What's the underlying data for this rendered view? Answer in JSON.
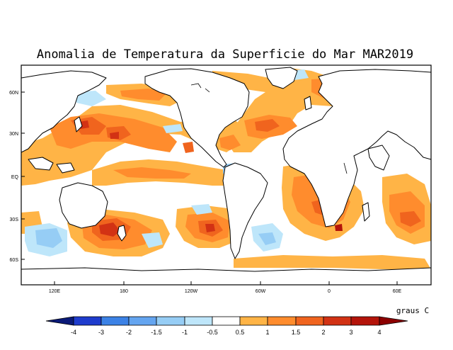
{
  "map": {
    "title": "Anomalia de Temperatura da Superficie do Mar MAR2019",
    "lat_labels": [
      "60N",
      "30N",
      "EQ",
      "30S",
      "60S"
    ],
    "lon_labels": [
      "120E",
      "180",
      "120W",
      "60W",
      "0",
      "60E"
    ],
    "unit_label": "graus C"
  },
  "legend": {
    "ticks": [
      "-4",
      "-3",
      "-2",
      "-1.5",
      "-1",
      "-0.5",
      "0.5",
      "1",
      "1.5",
      "2",
      "3",
      "4"
    ],
    "colors": {
      "lt_m4": "#0a1a78",
      "m4_m3": "#1e3ccd",
      "m3_m2": "#3c82e6",
      "m2_m15": "#64a5f0",
      "m15_m1": "#96cdf5",
      "m1_m05": "#bee6fa",
      "neutral": "#ffffff",
      "p05_1": "#ffb446",
      "p1_15": "#ff8c2d",
      "p15_2": "#f0641e",
      "p2_3": "#d23214",
      "p3_4": "#b4140a",
      "gt_4": "#8c0000"
    }
  }
}
